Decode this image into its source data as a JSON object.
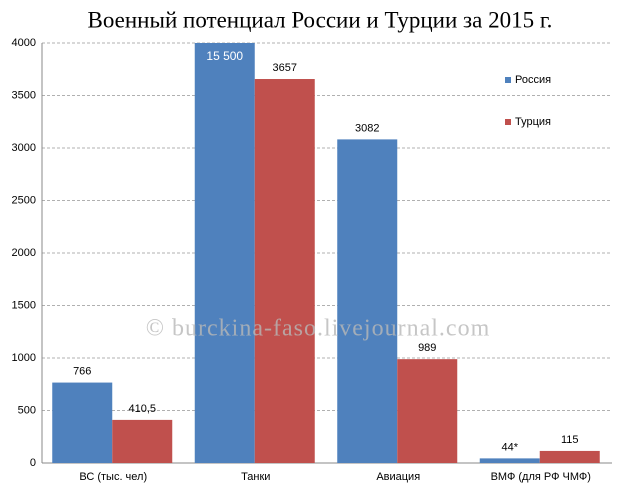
{
  "chart_data": {
    "type": "bar",
    "title": "Военный потенциал России и Турции за 2015 г.",
    "watermark": "© burckina-faso.livejournal.com",
    "categories": [
      "ВС (тыс. чел)",
      "Танки",
      "Авиация",
      "ВМФ (для РФ ЧМФ)"
    ],
    "series": [
      {
        "name": "Россия",
        "color": "#4f81bd",
        "values": [
          766,
          15500,
          3082,
          44
        ],
        "value_labels": [
          "766",
          "15 500",
          "3082",
          "44*"
        ]
      },
      {
        "name": "Турция",
        "color": "#c0504d",
        "values": [
          410.5,
          3657,
          989,
          115
        ],
        "value_labels": [
          "410,5",
          "3657",
          "989",
          "115"
        ]
      }
    ],
    "ylim": [
      0,
      4000
    ],
    "yticks": [
      0,
      500,
      1000,
      1500,
      2000,
      2500,
      3000,
      3500,
      4000
    ],
    "grid": true,
    "legend": "top-right"
  }
}
